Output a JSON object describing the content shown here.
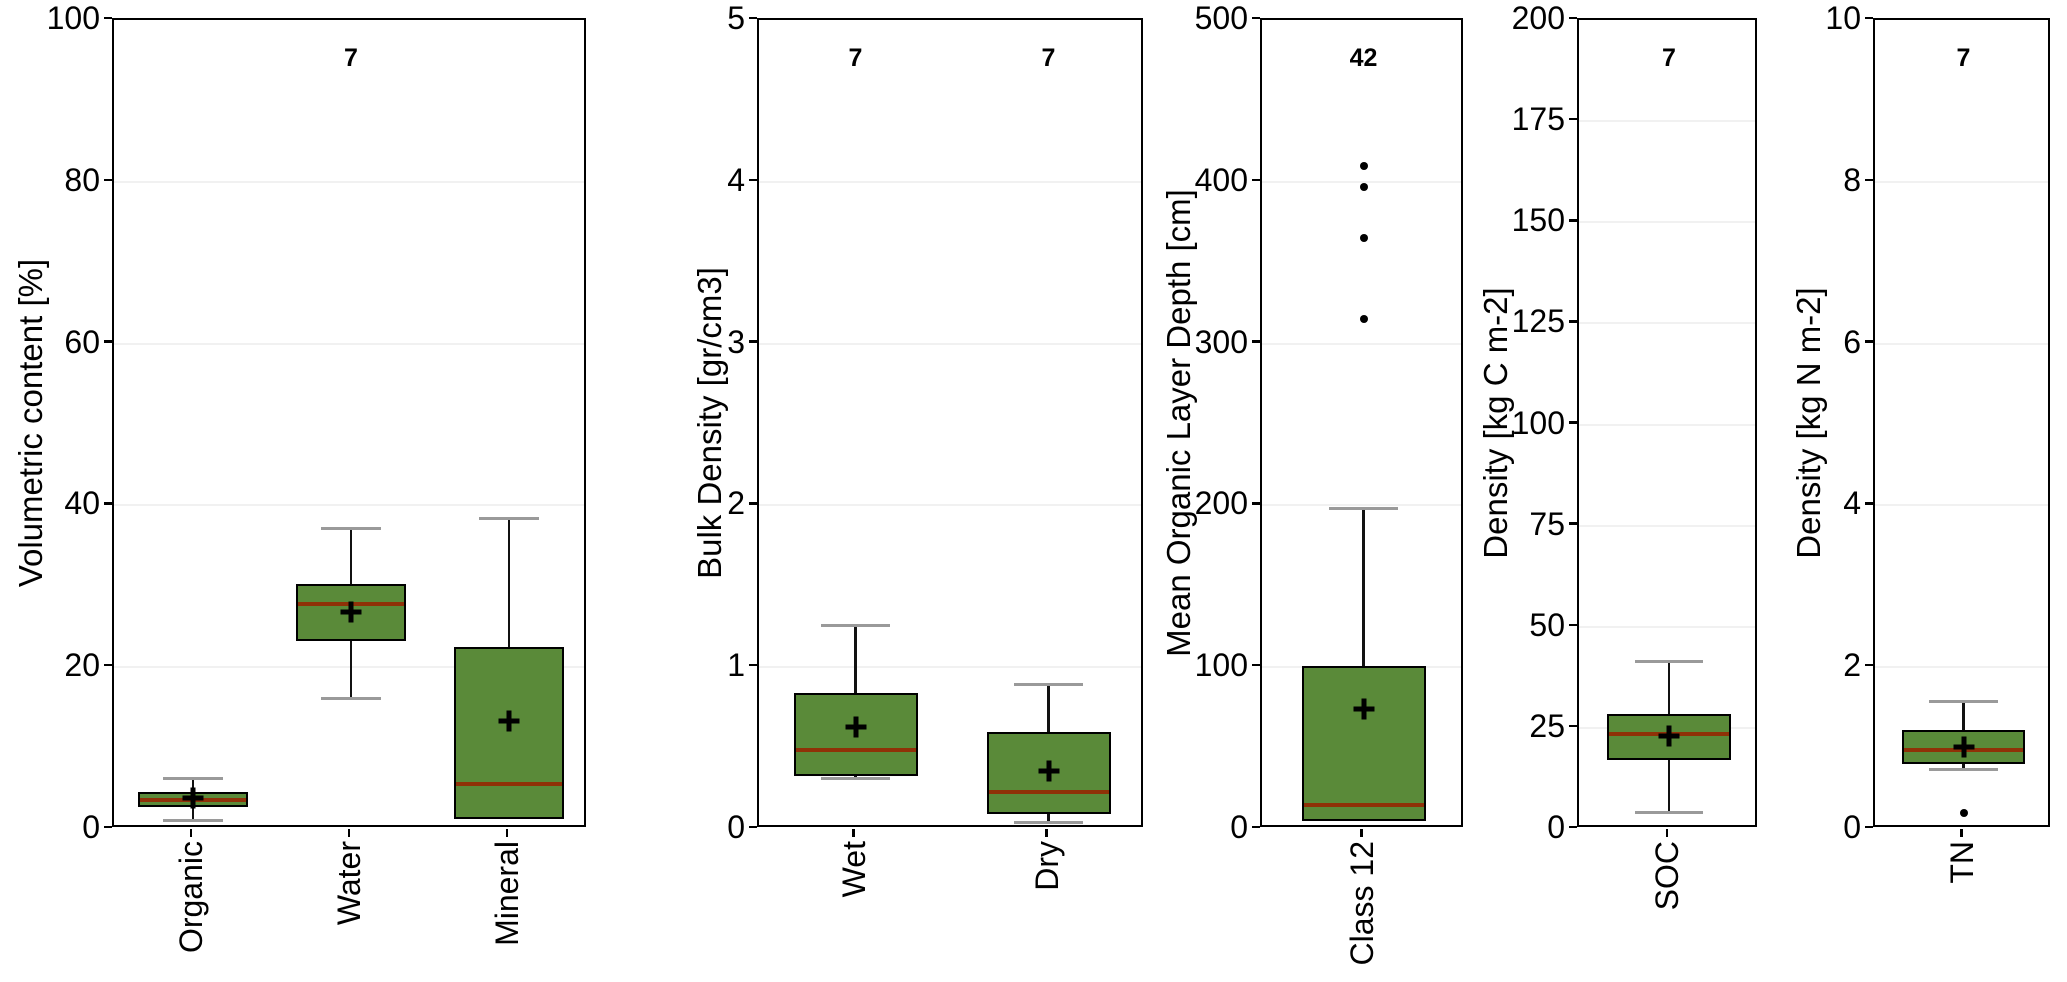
{
  "figure": {
    "background": "#ffffff"
  },
  "colors": {
    "box_fill": "#5a8a39",
    "box_edge": "#000000",
    "median": "#8f3107",
    "whisker": "#111111",
    "cap": "#9a9a9a",
    "mean": "#000000",
    "outlier": "#000000",
    "grid": "#f1f1f1",
    "text": "#000000"
  },
  "chart_data": [
    {
      "type": "box",
      "title": "",
      "ylabel": "Volumetric content [%]",
      "xlabel": "",
      "ylim": [
        0,
        100
      ],
      "yticks": [
        0,
        20,
        40,
        60,
        80,
        100
      ],
      "grid": true,
      "legend": "none",
      "count_placement": "panel-center",
      "panel_count": "7",
      "categories": [
        "Organic",
        "Water",
        "Mineral"
      ],
      "boxes": [
        {
          "category": "Organic",
          "whisker_low": 1.1,
          "q1": 2.7,
          "median": 3.6,
          "q3": 4.6,
          "mean": 3.8,
          "whisker_high": 6.2,
          "outliers": [],
          "n_label": ""
        },
        {
          "category": "Water",
          "whisker_low": 16.1,
          "q1": 23.2,
          "median": 27.8,
          "q3": 30.3,
          "mean": 26.8,
          "whisker_high": 37.1,
          "outliers": [],
          "n_label": ""
        },
        {
          "category": "Mineral",
          "whisker_low": 1.2,
          "q1": 1.2,
          "median": 5.6,
          "q3": 22.5,
          "mean": 13.3,
          "whisker_high": 38.4,
          "outliers": [],
          "n_label": ""
        }
      ]
    },
    {
      "type": "box",
      "title": "",
      "ylabel": "Bulk Density [gr/cm3]",
      "xlabel": "",
      "ylim": [
        0,
        5
      ],
      "yticks": [
        0,
        1,
        2,
        3,
        4,
        5
      ],
      "grid": true,
      "legend": "none",
      "count_placement": "per-box",
      "panel_count": "",
      "categories": [
        "Wet",
        "Dry"
      ],
      "boxes": [
        {
          "category": "Wet",
          "whisker_low": 0.31,
          "q1": 0.33,
          "median": 0.49,
          "q3": 0.84,
          "mean": 0.63,
          "whisker_high": 1.26,
          "outliers": [],
          "n_label": "7"
        },
        {
          "category": "Dry",
          "whisker_low": 0.04,
          "q1": 0.09,
          "median": 0.23,
          "q3": 0.6,
          "mean": 0.36,
          "whisker_high": 0.89,
          "outliers": [],
          "n_label": "7"
        }
      ]
    },
    {
      "type": "box",
      "title": "",
      "ylabel": "Mean Organic Layer Depth [cm]",
      "xlabel": "",
      "ylim": [
        0,
        500
      ],
      "yticks": [
        0,
        100,
        200,
        300,
        400,
        500
      ],
      "grid": true,
      "legend": "none",
      "count_placement": "per-box",
      "panel_count": "",
      "categories": [
        "Class 12"
      ],
      "boxes": [
        {
          "category": "Class 12",
          "whisker_low": 5,
          "q1": 5,
          "median": 15,
          "q3": 101,
          "mean": 74,
          "whisker_high": 198,
          "outliers": [
            315,
            365,
            397,
            410
          ],
          "n_label": "42"
        }
      ]
    },
    {
      "type": "box",
      "title": "",
      "ylabel": "Density [kg C m-2]",
      "xlabel": "",
      "ylim": [
        0,
        200
      ],
      "yticks": [
        0,
        25,
        50,
        75,
        100,
        125,
        150,
        175,
        200
      ],
      "grid": true,
      "legend": "none",
      "count_placement": "per-box",
      "panel_count": "",
      "categories": [
        "SOC"
      ],
      "boxes": [
        {
          "category": "SOC",
          "whisker_low": 4,
          "q1": 17,
          "median": 23.5,
          "q3": 28.5,
          "mean": 23,
          "whisker_high": 41.5,
          "outliers": [],
          "n_label": "7"
        }
      ]
    },
    {
      "type": "box",
      "title": "",
      "ylabel": "Density [kg N m-2]",
      "xlabel": "",
      "ylim": [
        0,
        10
      ],
      "yticks": [
        0,
        2,
        4,
        6,
        8,
        10
      ],
      "grid": true,
      "legend": "none",
      "count_placement": "per-box",
      "panel_count": "",
      "categories": [
        "TN"
      ],
      "boxes": [
        {
          "category": "TN",
          "whisker_low": 0.74,
          "q1": 0.8,
          "median": 0.98,
          "q3": 1.22,
          "mean": 1.01,
          "whisker_high": 1.58,
          "outliers": [
            0.2
          ],
          "n_label": "7"
        }
      ]
    }
  ]
}
